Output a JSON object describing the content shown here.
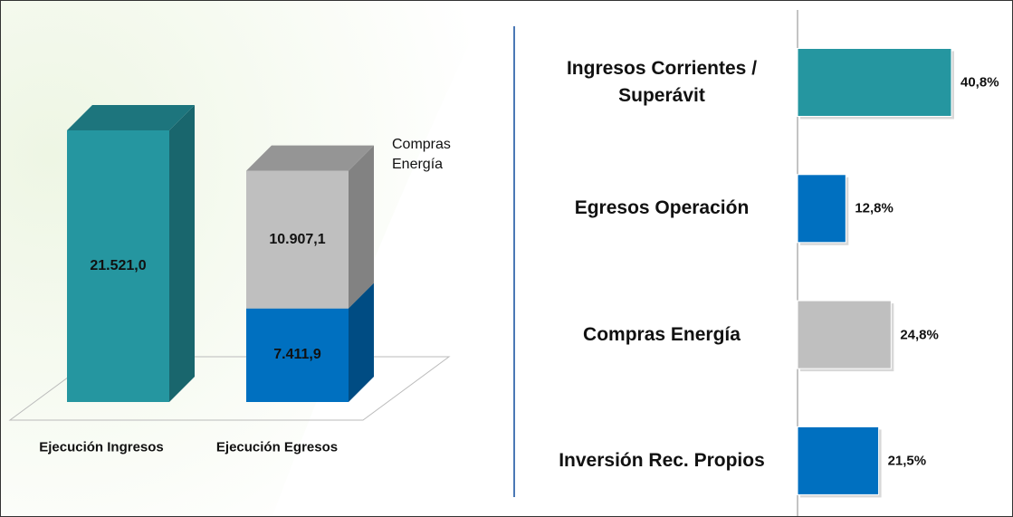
{
  "chart_data": [
    {
      "type": "bar3d",
      "stacked": true,
      "categories": [
        "Ejecución Ingresos",
        "Ejecución Egresos"
      ],
      "series": [
        {
          "color": "#2596a0",
          "values": [
            21521.0,
            null
          ],
          "value_labels": [
            "21.521,0",
            null
          ]
        },
        {
          "color": "#0070c0",
          "values": [
            null,
            7411.9
          ],
          "value_labels": [
            null,
            "7.411,9"
          ]
        },
        {
          "name": "Compras Energía",
          "color": "#bfbfbf",
          "values": [
            null,
            10907.1
          ],
          "value_labels": [
            null,
            "10.907,1"
          ]
        }
      ]
    },
    {
      "type": "hbar",
      "categories": [
        "Ingresos Corrientes / Superávit",
        "Egresos Operación",
        "Compras Energía",
        "Inversión Rec. Propios"
      ],
      "values": [
        40.8,
        12.8,
        24.8,
        21.5
      ],
      "value_labels": [
        "40,8%",
        "12,8%",
        "24,8%",
        "21,5%"
      ],
      "colors": [
        "#2596a0",
        "#0070c0",
        "#bfbfbf",
        "#0070c0"
      ]
    }
  ]
}
